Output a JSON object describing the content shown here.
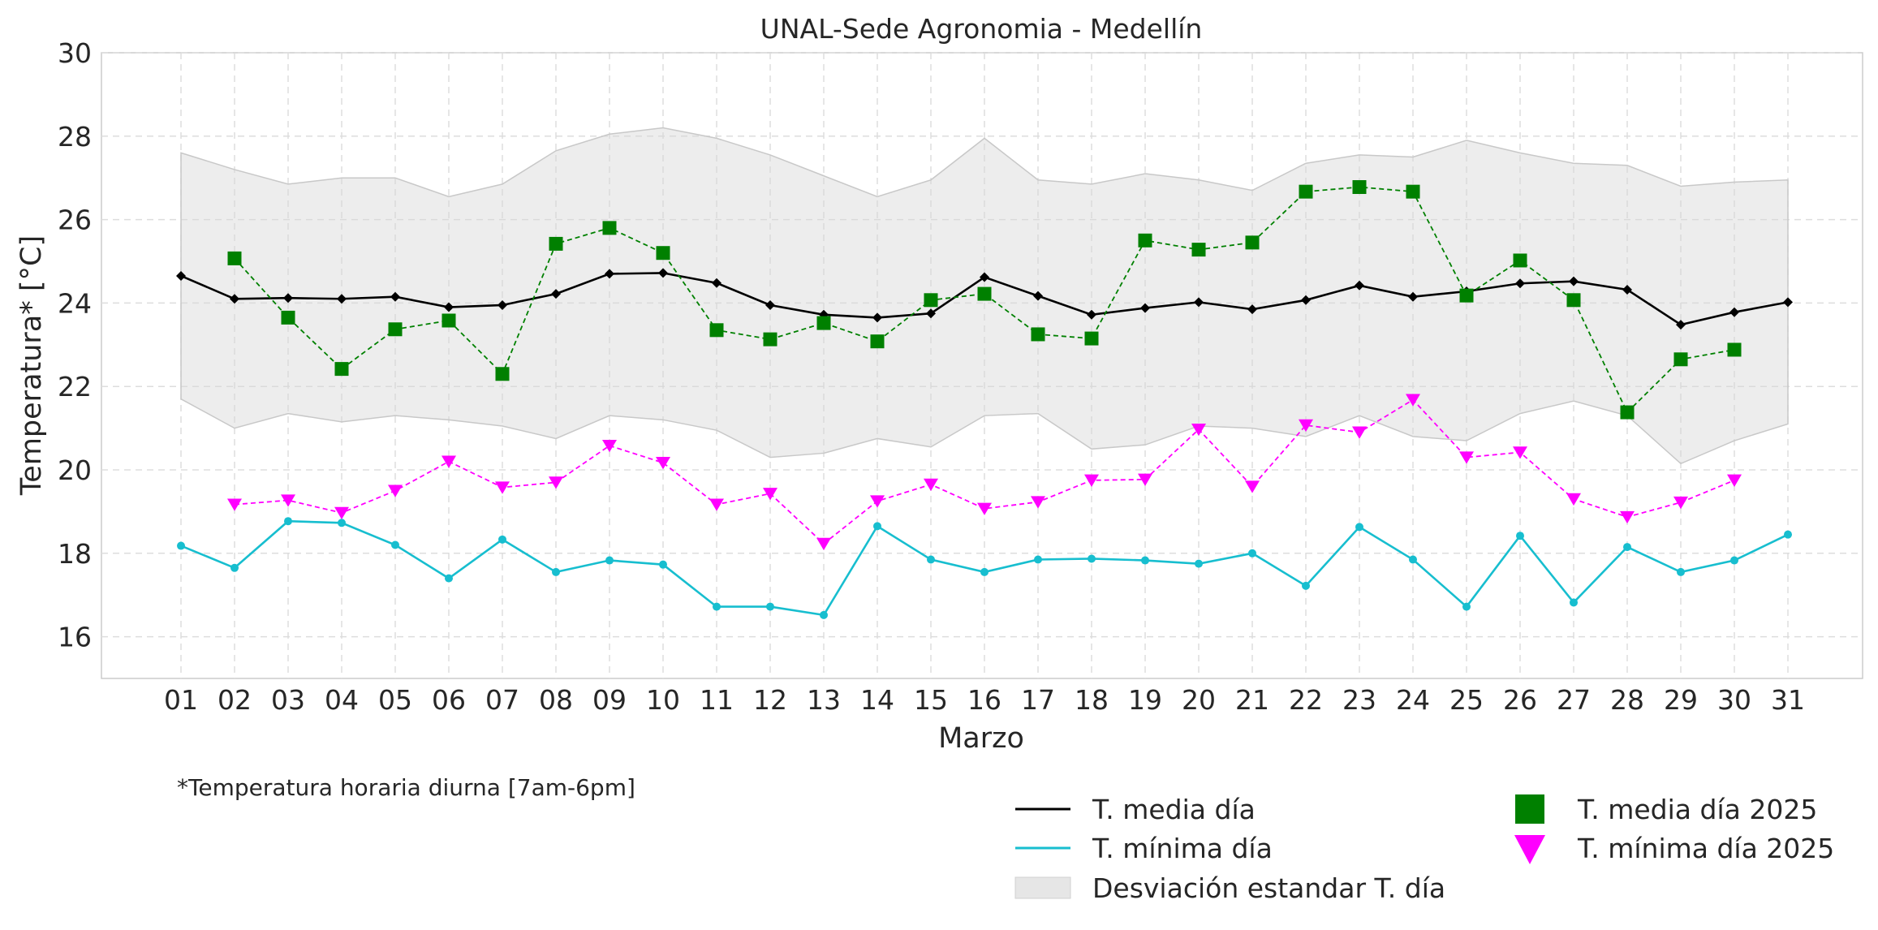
{
  "chart_data": {
    "type": "line",
    "title": "UNAL-Sede Agronomia - Medellín",
    "xlabel": "Marzo",
    "ylabel": "Temperatura* [°C]",
    "footnote": "*Temperatura horaria diurna [7am-6pm]",
    "ylim": [
      15,
      30
    ],
    "yticks": [
      16,
      18,
      20,
      22,
      24,
      26,
      28,
      30
    ],
    "grid": true,
    "legend_position": "bottom-right",
    "categories": [
      "01",
      "02",
      "03",
      "04",
      "05",
      "06",
      "07",
      "08",
      "09",
      "10",
      "11",
      "12",
      "13",
      "14",
      "15",
      "16",
      "17",
      "18",
      "19",
      "20",
      "21",
      "22",
      "23",
      "24",
      "25",
      "26",
      "27",
      "28",
      "29",
      "30",
      "31"
    ],
    "band": {
      "name": "Desviación estandar T. día",
      "color": "#e0e0e0",
      "upper": [
        27.6,
        27.2,
        26.85,
        27.0,
        27.0,
        26.55,
        26.85,
        27.65,
        28.05,
        28.2,
        27.95,
        27.55,
        27.05,
        26.55,
        26.95,
        27.95,
        26.95,
        26.85,
        27.1,
        26.95,
        26.7,
        27.35,
        27.55,
        27.5,
        27.9,
        27.6,
        27.35,
        27.3,
        26.8,
        26.9,
        26.95
      ],
      "lower": [
        21.7,
        21.0,
        21.35,
        21.15,
        21.3,
        21.2,
        21.05,
        20.75,
        21.3,
        21.2,
        20.95,
        20.3,
        20.4,
        20.75,
        20.55,
        21.3,
        21.35,
        20.5,
        20.6,
        21.05,
        21.0,
        20.8,
        21.3,
        20.8,
        20.7,
        21.35,
        21.65,
        21.3,
        20.15,
        20.7,
        21.1
      ]
    },
    "series": [
      {
        "name": "T. media día",
        "color": "#000000",
        "marker": "diamond",
        "style": "solid",
        "values": [
          24.65,
          24.1,
          24.12,
          24.1,
          24.15,
          23.9,
          23.95,
          24.22,
          24.7,
          24.72,
          24.48,
          23.95,
          23.72,
          23.65,
          23.75,
          24.62,
          24.17,
          23.72,
          23.88,
          24.02,
          23.85,
          24.07,
          24.42,
          24.15,
          24.28,
          24.47,
          24.52,
          24.32,
          23.48,
          23.78,
          24.02
        ]
      },
      {
        "name": "T. mínima día",
        "color": "#17becf",
        "marker": "circle",
        "style": "solid",
        "values": [
          18.18,
          17.65,
          18.77,
          18.73,
          18.2,
          17.4,
          18.33,
          17.55,
          17.83,
          17.73,
          16.72,
          16.72,
          16.52,
          18.65,
          17.85,
          17.55,
          17.85,
          17.87,
          17.83,
          17.75,
          18.0,
          17.22,
          18.63,
          17.85,
          16.72,
          18.42,
          16.82,
          18.15,
          17.55,
          17.83,
          18.45
        ]
      },
      {
        "name": "T. media día 2025",
        "color": "#008000",
        "marker": "square",
        "style": "dashed",
        "values": [
          null,
          25.07,
          23.65,
          22.42,
          23.37,
          23.58,
          22.3,
          25.42,
          25.8,
          25.2,
          23.35,
          23.13,
          23.52,
          23.08,
          24.07,
          24.22,
          23.25,
          23.15,
          25.5,
          25.28,
          25.45,
          26.67,
          26.78,
          26.67,
          24.18,
          25.02,
          24.07,
          21.38,
          22.65,
          22.88,
          null
        ]
      },
      {
        "name": "T. mínima día 2025",
        "color": "#ff00ff",
        "marker": "triangle-down",
        "style": "dashed",
        "values": [
          null,
          19.17,
          19.27,
          18.97,
          19.5,
          20.2,
          19.58,
          19.7,
          20.58,
          20.17,
          19.17,
          19.43,
          18.23,
          19.25,
          19.65,
          19.07,
          19.23,
          19.75,
          19.77,
          20.97,
          19.6,
          21.07,
          20.9,
          21.68,
          20.3,
          20.42,
          19.3,
          18.87,
          19.22,
          19.75,
          null
        ]
      }
    ]
  }
}
